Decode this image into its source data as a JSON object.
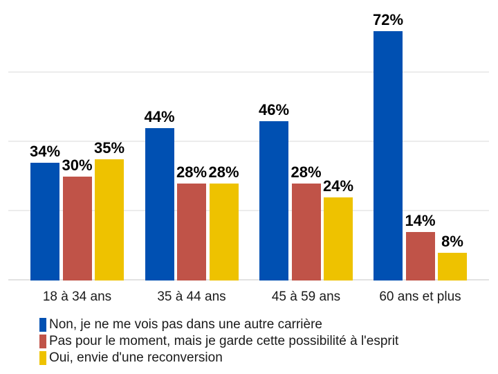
{
  "chart_data": {
    "type": "bar",
    "title": "",
    "categories": [
      "18 à 34 ans",
      "35 à 44 ans",
      "45 à 59 ans",
      "60 ans et plus"
    ],
    "series": [
      {
        "name": "Non, je ne me vois pas dans une autre carrière",
        "color": "#0050b2",
        "values": [
          34,
          44,
          46,
          72
        ],
        "labels": [
          "34%",
          "44%",
          "46%",
          "72%"
        ]
      },
      {
        "name": "Pas pour le moment, mais je garde cette possibilité à l'esprit",
        "color": "#c05348",
        "values": [
          30,
          28,
          28,
          14
        ],
        "labels": [
          "30%",
          "28%",
          "28%",
          "14%"
        ]
      },
      {
        "name": "Oui, envie d'une reconversion",
        "color": "#eec200",
        "values": [
          35,
          28,
          24,
          8
        ],
        "labels": [
          "35%",
          "28%",
          "24%",
          "8%"
        ]
      }
    ],
    "xlabel": "",
    "ylabel": "",
    "ylim": [
      0,
      80
    ],
    "grid": true,
    "gridline_values": [
      0,
      20,
      40,
      60
    ],
    "value_suffix": "%",
    "legend_position": "bottom-left",
    "colors": {
      "background": "#ffffff",
      "gridline": "#ececec",
      "axis_line": "#e2e2e2",
      "value_label": "#000000",
      "axis_label": "#1a1a1a",
      "legend_label": "#1a1a1a"
    }
  }
}
